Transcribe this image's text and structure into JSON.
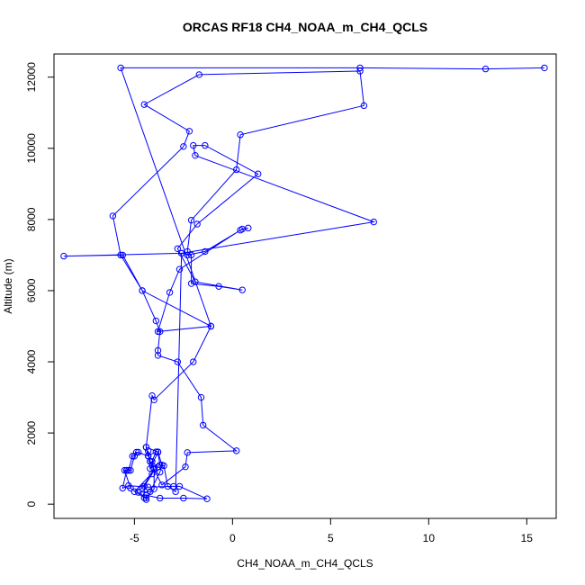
{
  "chart_data": {
    "type": "line",
    "title": "ORCAS RF18 CH4_NOAA_m_CH4_QCLS",
    "xlabel": "CH4_NOAA_m_CH4_QCLS",
    "ylabel": "Altitude (m)",
    "xlim": [
      -9.1,
      16.5
    ],
    "ylim": [
      -400,
      12650
    ],
    "xticks": [
      -5,
      0,
      5,
      10,
      15
    ],
    "yticks": [
      0,
      2000,
      4000,
      6000,
      8000,
      10000,
      12000
    ],
    "grid": false,
    "series_color": "#0000ff",
    "points": [
      {
        "x": -4.4,
        "y": 130
      },
      {
        "x": -4.4,
        "y": 250
      },
      {
        "x": -3.7,
        "y": 170
      },
      {
        "x": -2.5,
        "y": 170
      },
      {
        "x": -1.3,
        "y": 150
      },
      {
        "x": -2.7,
        "y": 500
      },
      {
        "x": -3.0,
        "y": 500
      },
      {
        "x": -4.3,
        "y": 480
      },
      {
        "x": -5.3,
        "y": 520
      },
      {
        "x": -5.6,
        "y": 450
      },
      {
        "x": -5.4,
        "y": 950
      },
      {
        "x": -5.4,
        "y": 950
      },
      {
        "x": -5.2,
        "y": 950
      },
      {
        "x": -5.0,
        "y": 1350
      },
      {
        "x": -4.9,
        "y": 1460
      },
      {
        "x": -4.3,
        "y": 1360
      },
      {
        "x": -3.9,
        "y": 1470
      },
      {
        "x": -4.1,
        "y": 1200
      },
      {
        "x": -4.0,
        "y": 980
      },
      {
        "x": -4.0,
        "y": 430
      },
      {
        "x": -4.4,
        "y": 180
      },
      {
        "x": -4.8,
        "y": 330
      },
      {
        "x": -4.2,
        "y": 350
      },
      {
        "x": -3.7,
        "y": 900
      },
      {
        "x": -3.6,
        "y": 1100
      },
      {
        "x": -3.8,
        "y": 1470
      },
      {
        "x": -4.4,
        "y": 1600
      },
      {
        "x": -4.2,
        "y": 1200
      },
      {
        "x": -3.6,
        "y": 540
      },
      {
        "x": -2.4,
        "y": 1050
      },
      {
        "x": -2.3,
        "y": 1450
      },
      {
        "x": 0.2,
        "y": 1500
      },
      {
        "x": -1.5,
        "y": 2220
      },
      {
        "x": -1.6,
        "y": 3000
      },
      {
        "x": -2.8,
        "y": 4000
      },
      {
        "x": -3.8,
        "y": 4180
      },
      {
        "x": -3.8,
        "y": 4320
      },
      {
        "x": -3.7,
        "y": 4850
      },
      {
        "x": -3.9,
        "y": 5150
      },
      {
        "x": -4.6,
        "y": 6000
      },
      {
        "x": -5.7,
        "y": 7000
      },
      {
        "x": -6.1,
        "y": 8100
      },
      {
        "x": -2.5,
        "y": 10050
      },
      {
        "x": -2.2,
        "y": 10480
      },
      {
        "x": -4.5,
        "y": 11230
      },
      {
        "x": -1.7,
        "y": 12070
      },
      {
        "x": 6.5,
        "y": 12170
      },
      {
        "x": 6.7,
        "y": 11200
      },
      {
        "x": 0.4,
        "y": 10380
      },
      {
        "x": 0.2,
        "y": 9400
      },
      {
        "x": -2.1,
        "y": 7980
      },
      {
        "x": -2.3,
        "y": 7100
      },
      {
        "x": -2.3,
        "y": 7000
      },
      {
        "x": -1.4,
        "y": 7100
      },
      {
        "x": 0.5,
        "y": 7730
      },
      {
        "x": 0.8,
        "y": 7760
      },
      {
        "x": 0.4,
        "y": 7700
      },
      {
        "x": -2.7,
        "y": 6600
      },
      {
        "x": -3.2,
        "y": 5950
      },
      {
        "x": -3.8,
        "y": 4850
      },
      {
        "x": -1.1,
        "y": 5000
      },
      {
        "x": -2.0,
        "y": 4000
      },
      {
        "x": -4.0,
        "y": 2930
      },
      {
        "x": -4.1,
        "y": 3050
      },
      {
        "x": -4.4,
        "y": 1600
      },
      {
        "x": -4.3,
        "y": 1350
      },
      {
        "x": -4.8,
        "y": 1460
      },
      {
        "x": -5.1,
        "y": 1350
      },
      {
        "x": -5.3,
        "y": 950
      },
      {
        "x": -5.5,
        "y": 950
      },
      {
        "x": -5.2,
        "y": 450
      },
      {
        "x": -4.5,
        "y": 180
      },
      {
        "x": -4.5,
        "y": 500
      },
      {
        "x": -4.1,
        "y": 850
      },
      {
        "x": -4.0,
        "y": 1000
      },
      {
        "x": -4.6,
        "y": 450
      },
      {
        "x": -5.0,
        "y": 350
      },
      {
        "x": -3.8,
        "y": 1050
      },
      {
        "x": -4.2,
        "y": 1200
      },
      {
        "x": -4.3,
        "y": 1500
      },
      {
        "x": -4.2,
        "y": 1000
      },
      {
        "x": -3.8,
        "y": 1460
      },
      {
        "x": -3.7,
        "y": 1100
      },
      {
        "x": -3.5,
        "y": 1080
      },
      {
        "x": -3.3,
        "y": 500
      },
      {
        "x": -2.9,
        "y": 350
      },
      {
        "x": -2.6,
        "y": 7050
      },
      {
        "x": -2.1,
        "y": 7000
      },
      {
        "x": -2.1,
        "y": 6200
      },
      {
        "x": -0.7,
        "y": 6120
      },
      {
        "x": 0.5,
        "y": 6020
      },
      {
        "x": -1.9,
        "y": 6250
      },
      {
        "x": -2.8,
        "y": 7180
      },
      {
        "x": -1.8,
        "y": 7870
      },
      {
        "x": 1.3,
        "y": 9280
      },
      {
        "x": -1.4,
        "y": 10080
      },
      {
        "x": -2.0,
        "y": 10080
      },
      {
        "x": -1.9,
        "y": 9800
      },
      {
        "x": 7.2,
        "y": 7930
      },
      {
        "x": -2.6,
        "y": 7050
      },
      {
        "x": -8.6,
        "y": 6970
      },
      {
        "x": -5.6,
        "y": 7000
      },
      {
        "x": -4.6,
        "y": 6000
      },
      {
        "x": -1.1,
        "y": 5000
      },
      {
        "x": -5.7,
        "y": 12260
      },
      {
        "x": 6.5,
        "y": 12260
      },
      {
        "x": 12.9,
        "y": 12230
      },
      {
        "x": 15.9,
        "y": 12260
      }
    ]
  }
}
